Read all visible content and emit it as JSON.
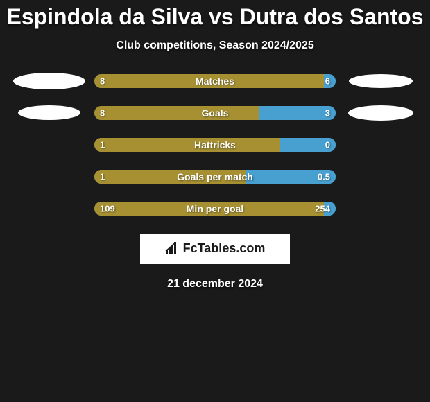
{
  "header": {
    "title": "Espindola da Silva vs Dutra dos Santos",
    "subtitle": "Club competitions, Season 2024/2025"
  },
  "colors": {
    "left": "#a69032",
    "right": "#48a0d0",
    "background": "#1a1a1a",
    "text": "#ffffff",
    "bar_radius": 10
  },
  "stats": [
    {
      "label": "Matches",
      "left_val": "8",
      "right_val": "6",
      "left_pct": 95,
      "right_pct": 5,
      "left_oval": {
        "w": 104,
        "h": 24
      },
      "right_oval": {
        "w": 92,
        "h": 20
      }
    },
    {
      "label": "Goals",
      "left_val": "8",
      "right_val": "3",
      "left_pct": 68,
      "right_pct": 32,
      "left_oval": {
        "w": 90,
        "h": 21
      },
      "right_oval": {
        "w": 94,
        "h": 22
      }
    },
    {
      "label": "Hattricks",
      "left_val": "1",
      "right_val": "0",
      "left_pct": 77,
      "right_pct": 23,
      "left_oval": null,
      "right_oval": null
    },
    {
      "label": "Goals per match",
      "left_val": "1",
      "right_val": "0.5",
      "left_pct": 63,
      "right_pct": 37,
      "left_oval": null,
      "right_oval": null
    },
    {
      "label": "Min per goal",
      "left_val": "109",
      "right_val": "254",
      "left_pct": 95,
      "right_pct": 5,
      "left_oval": null,
      "right_oval": null
    }
  ],
  "brand": {
    "text": "FcTables.com",
    "icon": "bar-chart-icon"
  },
  "footer": {
    "date": "21 december 2024"
  }
}
